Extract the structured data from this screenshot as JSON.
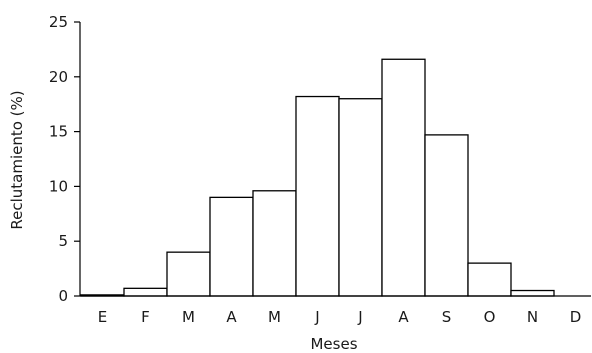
{
  "chart_data": {
    "type": "bar",
    "title": "",
    "xlabel": "Meses",
    "ylabel": "Reclutamiento  (%)",
    "categories": [
      "E",
      "F",
      "M",
      "A",
      "M",
      "J",
      "J",
      "A",
      "S",
      "O",
      "N",
      "D"
    ],
    "values": [
      0.1,
      0.7,
      4.0,
      9.0,
      9.6,
      18.2,
      18.0,
      21.6,
      14.7,
      3.0,
      0.5,
      0.0
    ],
    "ylim": [
      0,
      25
    ],
    "yticks": [
      0,
      5,
      10,
      15,
      20,
      25
    ],
    "grid": false,
    "legend": "none",
    "bar_fill": "#ffffff",
    "bar_stroke": "#000000"
  }
}
